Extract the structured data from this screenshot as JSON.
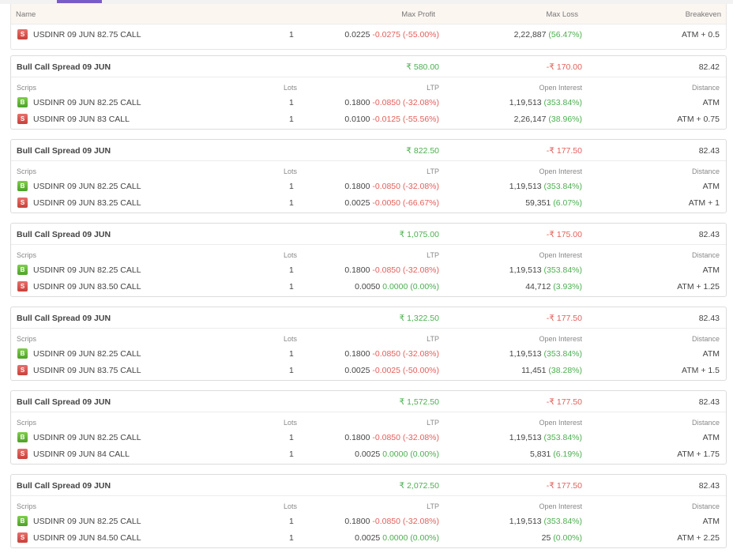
{
  "header": {
    "col_name": "Name",
    "col_max_profit": "Max Profit",
    "col_max_loss": "Max Loss",
    "col_breakeven": "Breakeven"
  },
  "top_leg": {
    "type": "S",
    "scrip": "USDINR 09 JUN 82.75 CALL",
    "lots": "1",
    "ltp": "0.0225",
    "change": "-0.0275 (-55.00%)",
    "oi": "2,22,887",
    "oi_change": "(56.47%)",
    "distance": "ATM + 0.5"
  },
  "subheaders": {
    "scrips": "Scrips",
    "lots": "Lots",
    "ltp": "LTP",
    "open_interest": "Open Interest",
    "distance": "Distance"
  },
  "strategies": [
    {
      "title": "Bull Call Spread 09 JUN",
      "max_profit": "₹ 580.00",
      "max_loss": "-₹ 170.00",
      "breakeven": "82.42",
      "legs": [
        {
          "type": "B",
          "scrip": "USDINR 09 JUN 82.25 CALL",
          "lots": "1",
          "ltp": "0.1800",
          "change": "-0.0850 (-32.08%)",
          "change_dir": "down",
          "oi": "1,19,513",
          "oi_change": "(353.84%)",
          "distance": "ATM"
        },
        {
          "type": "S",
          "scrip": "USDINR 09 JUN 83 CALL",
          "lots": "1",
          "ltp": "0.0100",
          "change": "-0.0125 (-55.56%)",
          "change_dir": "down",
          "oi": "2,26,147",
          "oi_change": "(38.96%)",
          "distance": "ATM + 0.75"
        }
      ]
    },
    {
      "title": "Bull Call Spread 09 JUN",
      "max_profit": "₹ 822.50",
      "max_loss": "-₹ 177.50",
      "breakeven": "82.43",
      "legs": [
        {
          "type": "B",
          "scrip": "USDINR 09 JUN 82.25 CALL",
          "lots": "1",
          "ltp": "0.1800",
          "change": "-0.0850 (-32.08%)",
          "change_dir": "down",
          "oi": "1,19,513",
          "oi_change": "(353.84%)",
          "distance": "ATM"
        },
        {
          "type": "S",
          "scrip": "USDINR 09 JUN 83.25 CALL",
          "lots": "1",
          "ltp": "0.0025",
          "change": "-0.0050 (-66.67%)",
          "change_dir": "down",
          "oi": "59,351",
          "oi_change": "(6.07%)",
          "distance": "ATM + 1"
        }
      ]
    },
    {
      "title": "Bull Call Spread 09 JUN",
      "max_profit": "₹ 1,075.00",
      "max_loss": "-₹ 175.00",
      "breakeven": "82.43",
      "legs": [
        {
          "type": "B",
          "scrip": "USDINR 09 JUN 82.25 CALL",
          "lots": "1",
          "ltp": "0.1800",
          "change": "-0.0850 (-32.08%)",
          "change_dir": "down",
          "oi": "1,19,513",
          "oi_change": "(353.84%)",
          "distance": "ATM"
        },
        {
          "type": "S",
          "scrip": "USDINR 09 JUN 83.50 CALL",
          "lots": "1",
          "ltp": "0.0050",
          "change": "0.0000 (0.00%)",
          "change_dir": "up",
          "oi": "44,712",
          "oi_change": "(3.93%)",
          "distance": "ATM + 1.25"
        }
      ]
    },
    {
      "title": "Bull Call Spread 09 JUN",
      "max_profit": "₹ 1,322.50",
      "max_loss": "-₹ 177.50",
      "breakeven": "82.43",
      "legs": [
        {
          "type": "B",
          "scrip": "USDINR 09 JUN 82.25 CALL",
          "lots": "1",
          "ltp": "0.1800",
          "change": "-0.0850 (-32.08%)",
          "change_dir": "down",
          "oi": "1,19,513",
          "oi_change": "(353.84%)",
          "distance": "ATM"
        },
        {
          "type": "S",
          "scrip": "USDINR 09 JUN 83.75 CALL",
          "lots": "1",
          "ltp": "0.0025",
          "change": "-0.0025 (-50.00%)",
          "change_dir": "down",
          "oi": "11,451",
          "oi_change": "(38.28%)",
          "distance": "ATM + 1.5"
        }
      ]
    },
    {
      "title": "Bull Call Spread 09 JUN",
      "max_profit": "₹ 1,572.50",
      "max_loss": "-₹ 177.50",
      "breakeven": "82.43",
      "legs": [
        {
          "type": "B",
          "scrip": "USDINR 09 JUN 82.25 CALL",
          "lots": "1",
          "ltp": "0.1800",
          "change": "-0.0850 (-32.08%)",
          "change_dir": "down",
          "oi": "1,19,513",
          "oi_change": "(353.84%)",
          "distance": "ATM"
        },
        {
          "type": "S",
          "scrip": "USDINR 09 JUN 84 CALL",
          "lots": "1",
          "ltp": "0.0025",
          "change": "0.0000 (0.00%)",
          "change_dir": "up",
          "oi": "5,831",
          "oi_change": "(6.19%)",
          "distance": "ATM + 1.75"
        }
      ]
    },
    {
      "title": "Bull Call Spread 09 JUN",
      "max_profit": "₹ 2,072.50",
      "max_loss": "-₹ 177.50",
      "breakeven": "82.43",
      "legs": [
        {
          "type": "B",
          "scrip": "USDINR 09 JUN 82.25 CALL",
          "lots": "1",
          "ltp": "0.1800",
          "change": "-0.0850 (-32.08%)",
          "change_dir": "down",
          "oi": "1,19,513",
          "oi_change": "(353.84%)",
          "distance": "ATM"
        },
        {
          "type": "S",
          "scrip": "USDINR 09 JUN 84.50 CALL",
          "lots": "1",
          "ltp": "0.0025",
          "change": "0.0000 (0.00%)",
          "change_dir": "up",
          "oi": "25",
          "oi_change": "(0.00%)",
          "distance": "ATM + 2.25"
        }
      ]
    }
  ]
}
